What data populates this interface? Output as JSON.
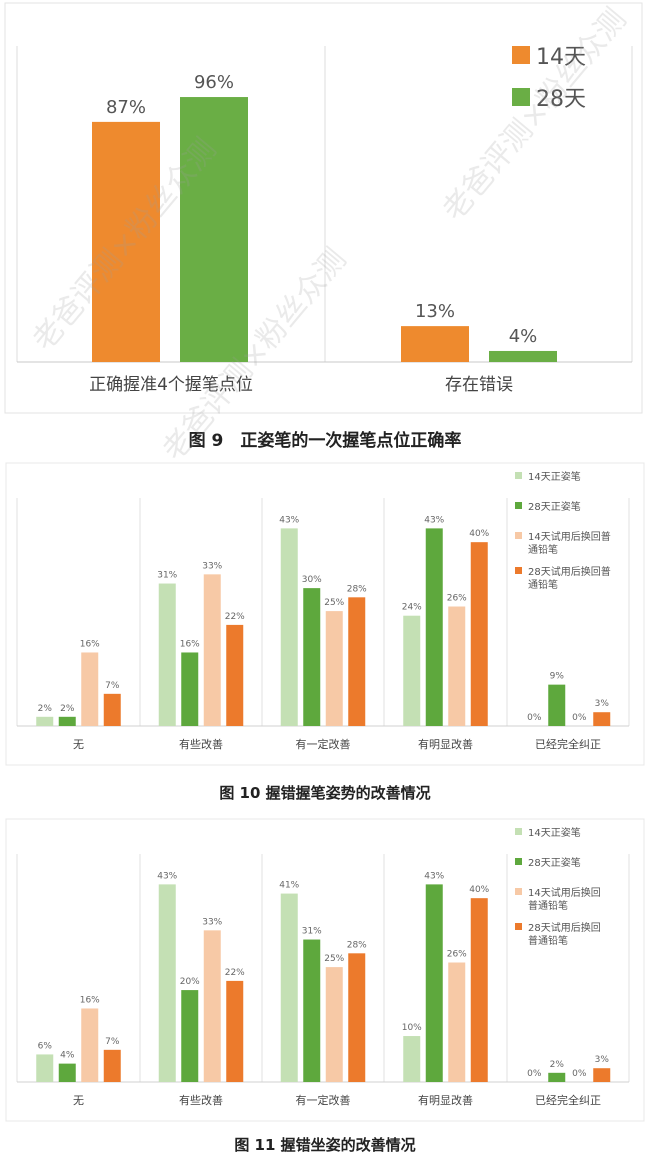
{
  "colors": {
    "c14": "#ee8a2e",
    "c28": "#6aae45",
    "light14": "#f7c9a6",
    "dark28": "#5ea83d",
    "light_green": "#c4e0b4",
    "orange": "#ec7a2c"
  },
  "watermark": "老爸评测×粉丝众测",
  "chart_data": [
    {
      "type": "bar",
      "caption": "图 9　正姿笔的一次握笔点位正确率",
      "categories": [
        "正确握准4个握笔点位",
        "存在错误"
      ],
      "series": [
        {
          "name": "14天",
          "values": [
            87,
            13
          ],
          "labels": [
            "87%",
            "13%"
          ]
        },
        {
          "name": "28天",
          "values": [
            96,
            4
          ],
          "labels": [
            "96%",
            "4%"
          ]
        }
      ],
      "ylim": [
        0,
        100
      ],
      "legend": "top-right",
      "grid": false
    },
    {
      "type": "bar",
      "caption": "图 10 握错握笔姿势的改善情况",
      "categories": [
        "无",
        "有些改善",
        "有一定改善",
        "有明显改善",
        "已经完全纠正"
      ],
      "series": [
        {
          "name": "14天正姿笔",
          "values": [
            2,
            31,
            43,
            24,
            0
          ],
          "labels": [
            "2%",
            "31%",
            "43%",
            "24%",
            "0%"
          ]
        },
        {
          "name": "28天正姿笔",
          "values": [
            2,
            16,
            30,
            43,
            9
          ],
          "labels": [
            "2%",
            "16%",
            "30%",
            "43%",
            "9%"
          ]
        },
        {
          "name": "14天试用后换回普通铅笔",
          "values": [
            16,
            33,
            25,
            26,
            0
          ],
          "labels": [
            "16%",
            "33%",
            "25%",
            "26%",
            "0%"
          ]
        },
        {
          "name": "28天试用后换回普通铅笔",
          "values": [
            7,
            22,
            28,
            40,
            3
          ],
          "labels": [
            "7%",
            "22%",
            "28%",
            "40%",
            "3%"
          ]
        }
      ],
      "legend_lines": [
        [
          "14天正姿笔"
        ],
        [
          "28天正姿笔"
        ],
        [
          "14天试用后换回普",
          "通铅笔"
        ],
        [
          "28天试用后换回普",
          "通铅笔"
        ]
      ],
      "ylim": [
        0,
        50
      ],
      "legend": "right",
      "grid": false
    },
    {
      "type": "bar",
      "caption": "图 11  握错坐姿的改善情况",
      "categories": [
        "无",
        "有些改善",
        "有一定改善",
        "有明显改善",
        "已经完全纠正"
      ],
      "series": [
        {
          "name": "14天正姿笔",
          "values": [
            6,
            43,
            41,
            10,
            0
          ],
          "labels": [
            "6%",
            "43%",
            "41%",
            "10%",
            "0%"
          ]
        },
        {
          "name": "28天正姿笔",
          "values": [
            4,
            20,
            31,
            43,
            2
          ],
          "labels": [
            "4%",
            "20%",
            "31%",
            "43%",
            "2%"
          ]
        },
        {
          "name": "14天试用后换回普通铅笔",
          "values": [
            16,
            33,
            25,
            26,
            0
          ],
          "labels": [
            "16%",
            "33%",
            "25%",
            "26%",
            "0%"
          ]
        },
        {
          "name": "28天试用后换回普通铅笔",
          "values": [
            7,
            22,
            28,
            40,
            3
          ],
          "labels": [
            "7%",
            "22%",
            "28%",
            "40%",
            "3%"
          ]
        }
      ],
      "legend_lines": [
        [
          "14天正姿笔"
        ],
        [
          "28天正姿笔"
        ],
        [
          "14天试用后换回",
          "普通铅笔"
        ],
        [
          "28天试用后换回",
          "普通铅笔"
        ]
      ],
      "ylim": [
        0,
        50
      ],
      "legend": "right",
      "grid": false
    }
  ]
}
